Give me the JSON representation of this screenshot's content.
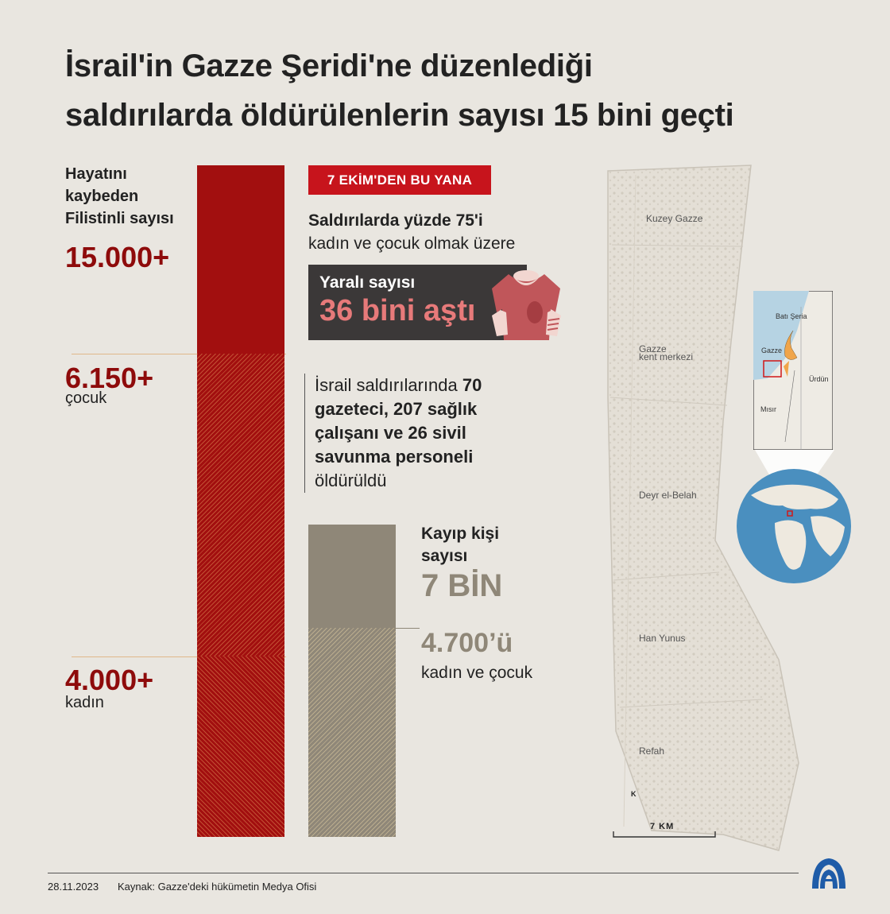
{
  "title": {
    "line1": "İsrail'in Gazze Şeridi'ne düzenlediği",
    "line2": "saldırılarda öldürülenlerin sayısı 15 bini geçti"
  },
  "dead": {
    "label_lines": [
      "Hayatını",
      "kaybeden",
      "Filistinli sayısı"
    ],
    "total": "15.000+",
    "children": "6.150+",
    "children_label": "çocuk",
    "women": "4.000+",
    "women_label": "kadın"
  },
  "since": {
    "badge": "7 EKİM'DEN  BU YANA",
    "line1": "Saldırılarda yüzde 75'i",
    "line2": "kadın ve çocuk olmak üzere"
  },
  "injured": {
    "label": "Yaralı sayısı",
    "value": "36 bini aştı"
  },
  "press": {
    "p1": "İsrail saldırılarında ",
    "b1": "70",
    "b2": "gazeteci, 207 sağlık",
    "b3": "çalışanı ve 26 sivil",
    "b4": "savunma personeli",
    "p2": "öldürüldü"
  },
  "missing": {
    "label_lines": [
      "Kayıp kişi",
      "sayısı"
    ],
    "value": "7 BİN",
    "women_children": "4.700’ü",
    "women_children_label": "kadın ve çocuk"
  },
  "map": {
    "places": [
      "Kuzey Gazze",
      "Gazze",
      "kent merkezi",
      "Deyr el-Belah",
      "Han Yunus",
      "Refah"
    ],
    "scale": "7 KM",
    "north": "K",
    "inset": [
      "Batı Şeria",
      "Gazze",
      "Ürdün",
      "Mısır"
    ]
  },
  "footer": {
    "date": "28.11.2023",
    "source": "Kaynak: Gazze'deki hükümetin Medya Ofisi",
    "logo": "AA"
  },
  "colors": {
    "dark_red": "#a20f0f",
    "badge_red": "#c7141c",
    "grey": "#8f8778",
    "background": "#e9e6e0",
    "inset_orange": "#f0a54a"
  }
}
